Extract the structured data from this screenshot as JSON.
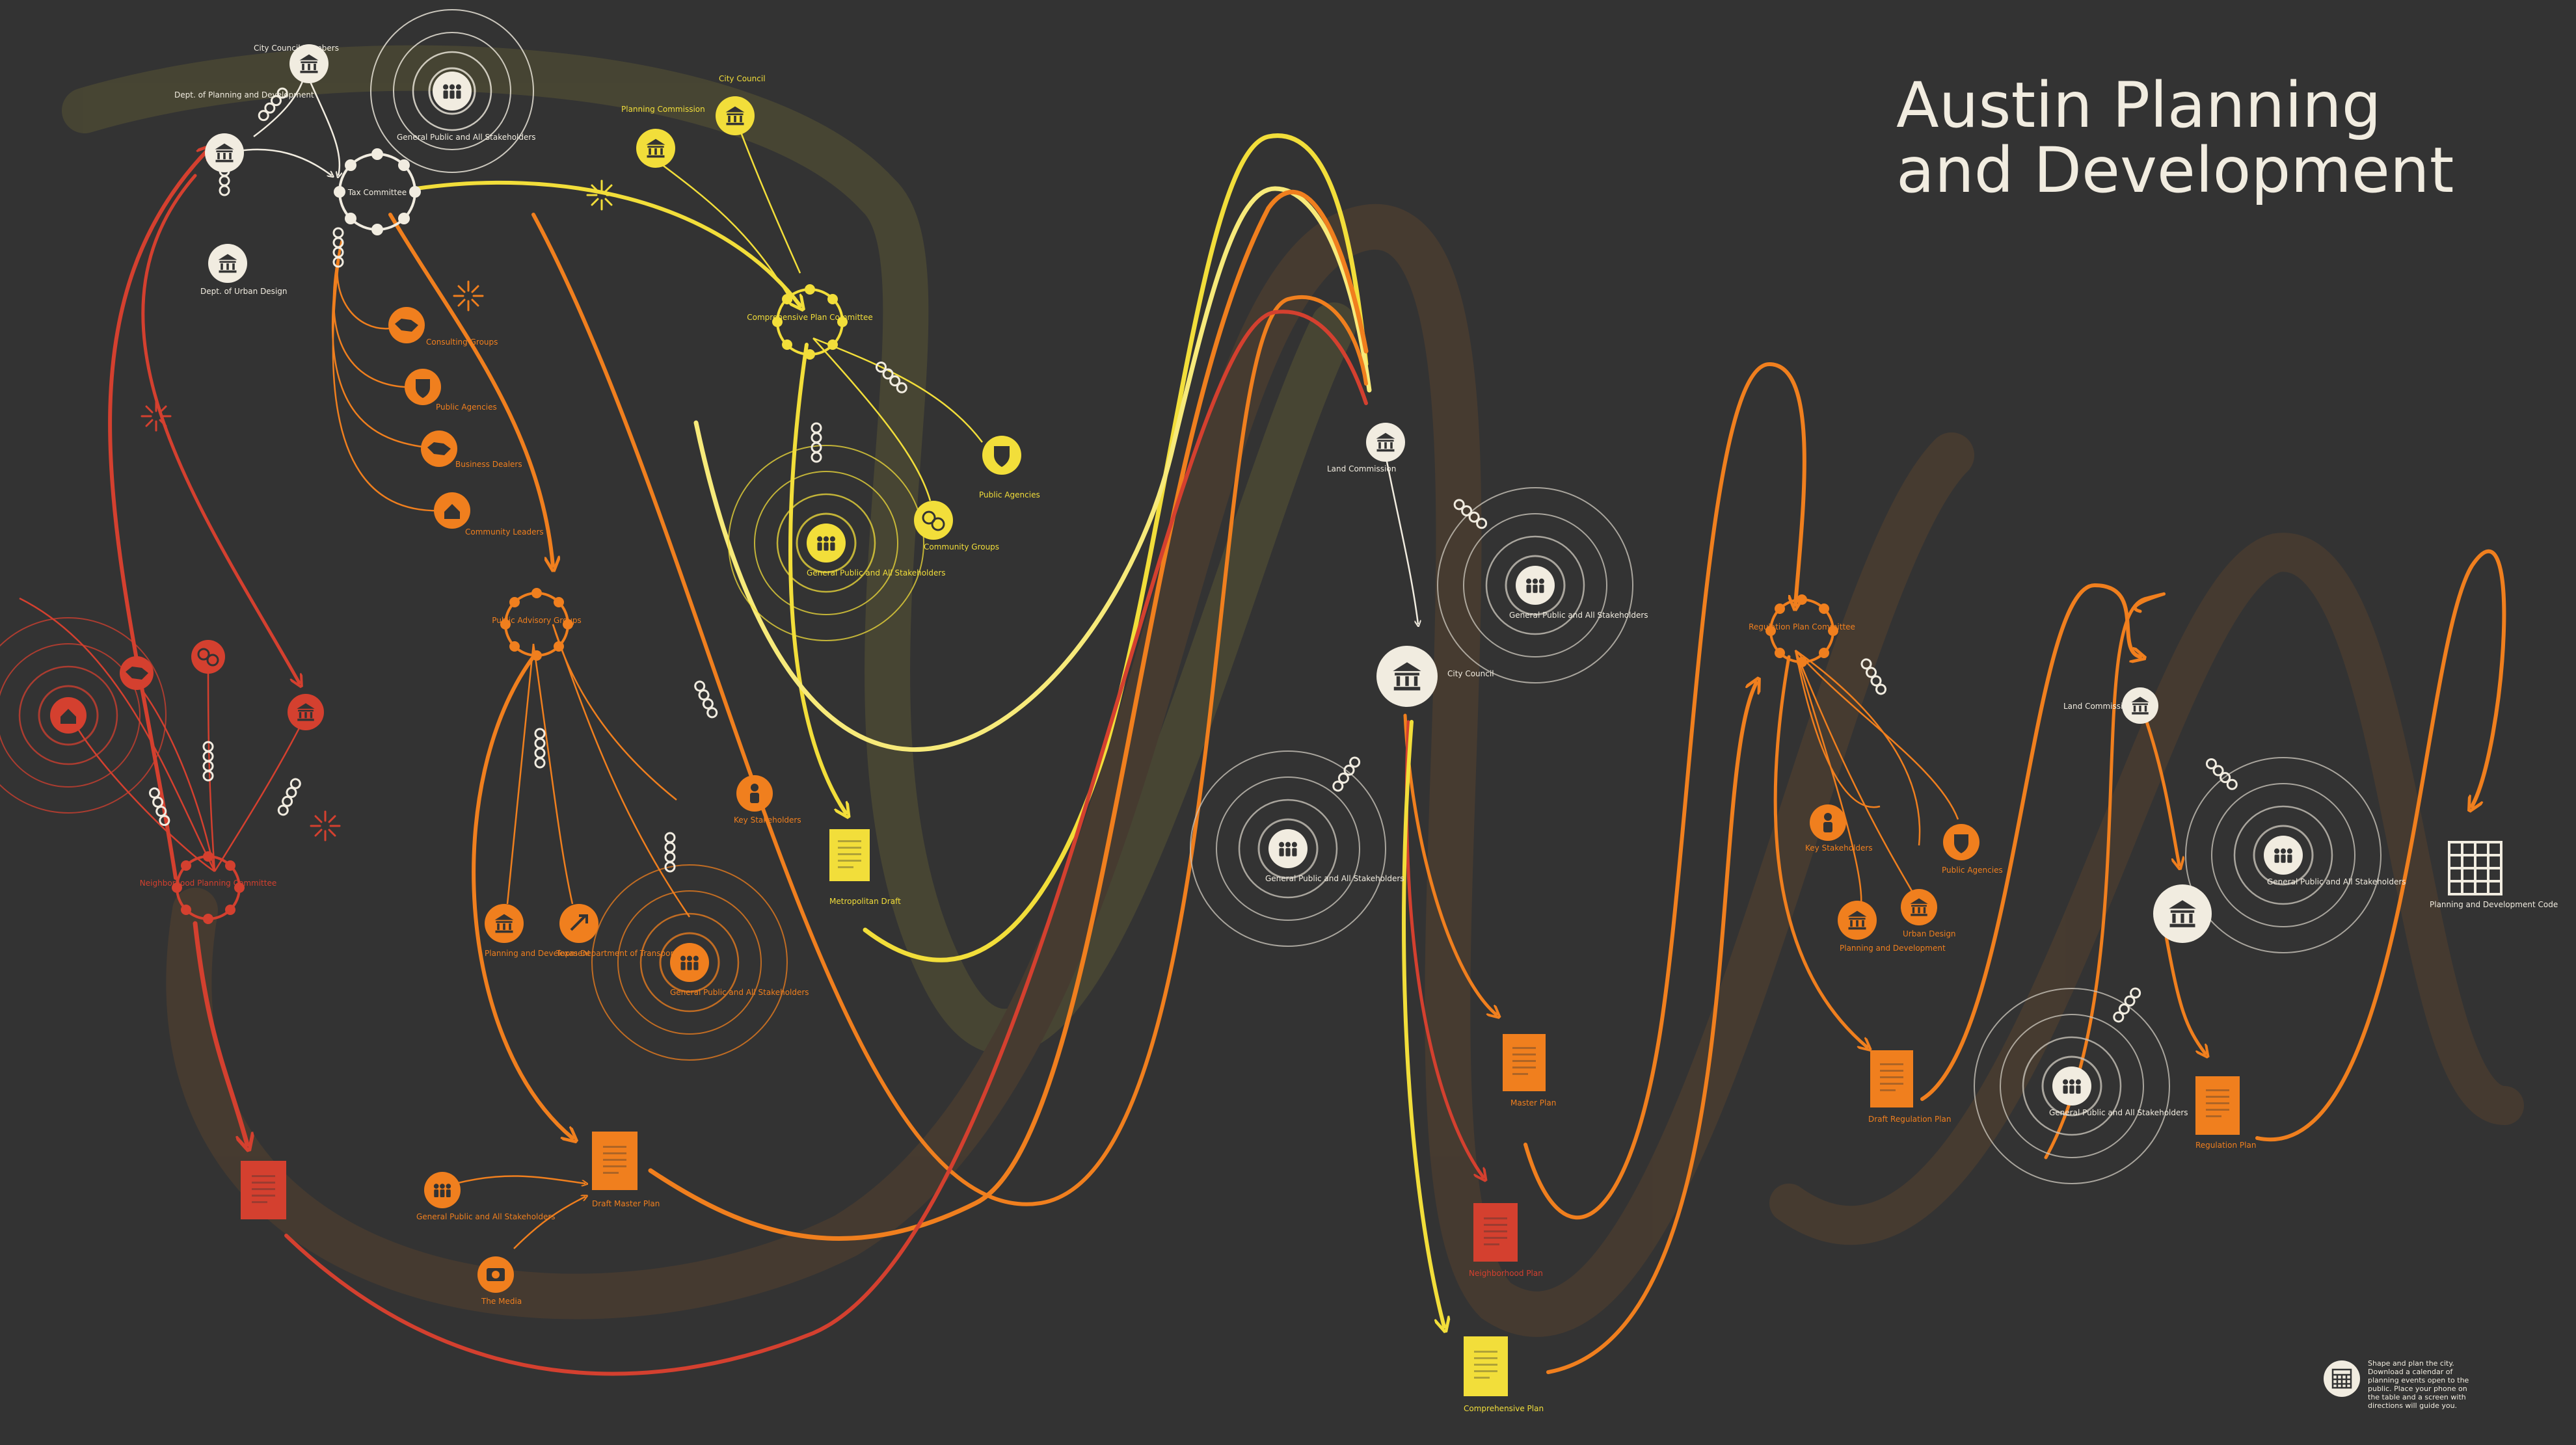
{
  "title": {
    "line1": "Austin Planning",
    "line2": "and Development"
  },
  "colors": {
    "background": "#333333",
    "white": "#f1ece0",
    "yellow": "#f2de3a",
    "orange": "#f07f1e",
    "red": "#d4402f",
    "ring": "#c7c2b8"
  },
  "labels": {
    "city_council_members": "City Council Members",
    "dept_planning": "Dept. of Planning and Development",
    "dept_urban_design": "Dept. of Urban Design",
    "tax_committee": "Tax Committee",
    "general_public_1": "General Public and All Stakeholders",
    "planning_commission": "Planning Commission",
    "city_council_1": "City Council",
    "comp_plan_committee": "Comprehensive Plan Committee",
    "consulting_groups": "Consulting Groups",
    "public_agencies_1": "Public Agencies",
    "business_dealers": "Business Dealers",
    "community_leaders": "Community Leaders",
    "public_agencies_2": "Public Agencies",
    "community_groups": "Community Groups",
    "general_public_2": "General Public and All Stakeholders",
    "public_advisory": "Public Advisory Groups",
    "key_stakeholders_1": "Key Stakeholders",
    "planning_dev_1": "Planning and Development",
    "texas_transport": "Texas Department of Transportation",
    "general_public_3": "General Public and All Stakeholders",
    "metro_draft": "Metropolitan Draft",
    "draft_master": "Draft Master Plan",
    "media": "The Media",
    "general_public_4": "General Public and All Stakeholders",
    "neighborhood_planning": "Neighborhood Planning Committee",
    "land_commission_1": "Land Commission",
    "city_council_2": "City Council",
    "general_public_5": "General Public and All Stakeholders",
    "general_public_6": "General Public and All Stakeholders",
    "master_plan": "Master Plan",
    "neighborhood_plan": "Neighborhood Plan",
    "comprehensive_plan": "Comprehensive Plan",
    "regulation_committee": "Regulation Plan Committee",
    "key_stakeholders_2": "Key Stakeholders",
    "public_agencies_3": "Public Agencies",
    "planning_dev_2": "Planning and Development",
    "urban_design": "Urban Design",
    "draft_regulation": "Draft Regulation Plan",
    "land_commission_2": "Land Commission",
    "general_public_7": "General Public and All Stakeholders",
    "general_public_8": "General Public and All Stakeholders",
    "regulation_plan": "Regulation Plan",
    "code": "Planning and Development Code",
    "footer_note": "Shape and plan the city. Download a calendar of planning events open to the public. Place your phone on the table and a screen with directions will guide you."
  }
}
